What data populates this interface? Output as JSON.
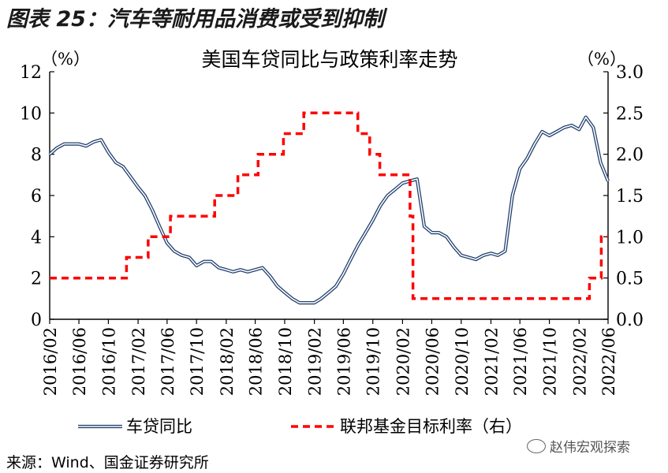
{
  "figure_title": "图表 25：汽车等耐用品消费或受到抑制",
  "source_note": "来源：Wind、国金证券研究所",
  "watermark": "赵伟宏观探索",
  "colors": {
    "loan_line": "#22406e",
    "rate_line": "#ff0000",
    "axis": "#000000"
  },
  "chart_data": {
    "type": "line",
    "title": "美国车贷同比与政策利率走势",
    "left_unit": "（%）",
    "right_unit": "（%）",
    "y_left": {
      "range": [
        0,
        12
      ],
      "ticks": [
        "0",
        "2",
        "4",
        "6",
        "8",
        "10",
        "12"
      ]
    },
    "y_right": {
      "range": [
        0,
        3
      ],
      "ticks": [
        "0.0",
        "0.5",
        "1.0",
        "1.5",
        "2.0",
        "2.5",
        "3.0"
      ]
    },
    "x_tick_labels": [
      "2016/02",
      "2016/06",
      "2016/10",
      "2017/02",
      "2017/06",
      "2017/10",
      "2018/02",
      "2018/06",
      "2018/10",
      "2019/02",
      "2019/06",
      "2019/10",
      "2020/02",
      "2020/06",
      "2020/10",
      "2021/02",
      "2021/06",
      "2021/10",
      "2022/02",
      "2022/06"
    ],
    "legend_position": "bottom",
    "series": [
      {
        "name": "车贷同比",
        "axis": "left",
        "style": "double-line",
        "points": [
          [
            "2016-02-01",
            8.0
          ],
          [
            "2016-03-01",
            8.3
          ],
          [
            "2016-04-01",
            8.5
          ],
          [
            "2016-05-01",
            8.5
          ],
          [
            "2016-06-01",
            8.5
          ],
          [
            "2016-07-01",
            8.4
          ],
          [
            "2016-08-01",
            8.6
          ],
          [
            "2016-09-01",
            8.7
          ],
          [
            "2016-10-01",
            8.1
          ],
          [
            "2016-11-01",
            7.6
          ],
          [
            "2016-12-01",
            7.4
          ],
          [
            "2017-01-01",
            6.9
          ],
          [
            "2017-02-01",
            6.4
          ],
          [
            "2017-03-01",
            6.0
          ],
          [
            "2017-04-01",
            5.3
          ],
          [
            "2017-05-01",
            4.5
          ],
          [
            "2017-06-01",
            3.7
          ],
          [
            "2017-07-01",
            3.3
          ],
          [
            "2017-08-01",
            3.1
          ],
          [
            "2017-09-01",
            3.0
          ],
          [
            "2017-10-01",
            2.6
          ],
          [
            "2017-11-01",
            2.8
          ],
          [
            "2017-12-01",
            2.8
          ],
          [
            "2018-01-01",
            2.5
          ],
          [
            "2018-02-01",
            2.4
          ],
          [
            "2018-03-01",
            2.3
          ],
          [
            "2018-04-01",
            2.4
          ],
          [
            "2018-05-01",
            2.3
          ],
          [
            "2018-06-01",
            2.4
          ],
          [
            "2018-07-01",
            2.5
          ],
          [
            "2018-08-01",
            2.1
          ],
          [
            "2018-09-01",
            1.6
          ],
          [
            "2018-10-01",
            1.3
          ],
          [
            "2018-11-01",
            1.0
          ],
          [
            "2018-12-01",
            0.8
          ],
          [
            "2019-01-01",
            0.8
          ],
          [
            "2019-02-01",
            0.8
          ],
          [
            "2019-03-01",
            1.0
          ],
          [
            "2019-04-01",
            1.3
          ],
          [
            "2019-05-01",
            1.6
          ],
          [
            "2019-06-01",
            2.2
          ],
          [
            "2019-07-01",
            2.9
          ],
          [
            "2019-08-01",
            3.6
          ],
          [
            "2019-09-01",
            4.2
          ],
          [
            "2019-10-01",
            4.8
          ],
          [
            "2019-11-01",
            5.5
          ],
          [
            "2019-12-01",
            6.0
          ],
          [
            "2020-01-01",
            6.3
          ],
          [
            "2020-02-01",
            6.6
          ],
          [
            "2020-03-01",
            6.7
          ],
          [
            "2020-04-01",
            6.8
          ],
          [
            "2020-05-01",
            4.5
          ],
          [
            "2020-06-01",
            4.2
          ],
          [
            "2020-07-01",
            4.2
          ],
          [
            "2020-08-01",
            4.0
          ],
          [
            "2020-09-01",
            3.5
          ],
          [
            "2020-10-01",
            3.1
          ],
          [
            "2020-11-01",
            3.0
          ],
          [
            "2020-12-01",
            2.9
          ],
          [
            "2021-01-01",
            3.1
          ],
          [
            "2021-02-01",
            3.2
          ],
          [
            "2021-03-01",
            3.1
          ],
          [
            "2021-04-01",
            3.3
          ],
          [
            "2021-05-01",
            6.0
          ],
          [
            "2021-06-01",
            7.3
          ],
          [
            "2021-07-01",
            7.8
          ],
          [
            "2021-08-01",
            8.5
          ],
          [
            "2021-09-01",
            9.1
          ],
          [
            "2021-10-01",
            8.9
          ],
          [
            "2021-11-01",
            9.1
          ],
          [
            "2021-12-01",
            9.3
          ],
          [
            "2022-01-01",
            9.4
          ],
          [
            "2022-02-01",
            9.2
          ],
          [
            "2022-03-01",
            9.8
          ],
          [
            "2022-04-01",
            9.3
          ],
          [
            "2022-05-01",
            7.6
          ],
          [
            "2022-06-01",
            6.7
          ]
        ]
      },
      {
        "name": "联邦基金目标利率（右）",
        "axis": "right",
        "style": "dashed-step",
        "points": [
          [
            "2016-02-01",
            0.5
          ],
          [
            "2016-12-15",
            0.75
          ],
          [
            "2017-03-15",
            1.0
          ],
          [
            "2017-06-15",
            1.25
          ],
          [
            "2017-12-15",
            1.5
          ],
          [
            "2018-03-21",
            1.75
          ],
          [
            "2018-06-13",
            2.0
          ],
          [
            "2018-09-26",
            2.25
          ],
          [
            "2018-12-19",
            2.5
          ],
          [
            "2019-07-31",
            2.25
          ],
          [
            "2019-09-18",
            2.0
          ],
          [
            "2019-10-30",
            1.75
          ],
          [
            "2020-03-03",
            1.25
          ],
          [
            "2020-03-15",
            0.25
          ],
          [
            "2022-03-16",
            0.5
          ],
          [
            "2022-05-04",
            1.0
          ],
          [
            "2022-06-01",
            1.0
          ]
        ]
      }
    ]
  }
}
